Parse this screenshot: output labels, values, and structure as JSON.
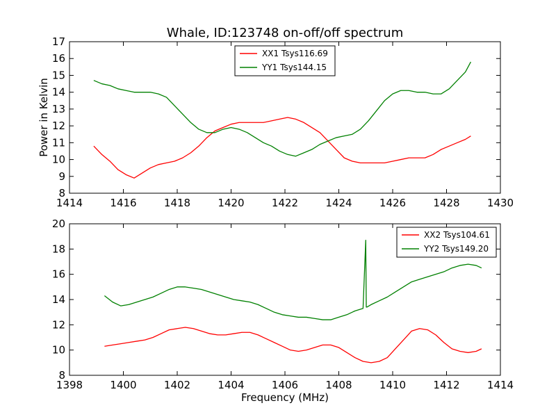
{
  "figure": {
    "title": "Whale, ID:123748 on-off/off spectrum"
  },
  "chart_data": [
    {
      "type": "line",
      "title": "Whale, ID:123748 on-off/off spectrum",
      "xlabel": "",
      "ylabel": "Power in Kelvin",
      "xlim": [
        1414,
        1430
      ],
      "ylim": [
        8,
        17
      ],
      "xticks": [
        1414,
        1416,
        1418,
        1420,
        1422,
        1424,
        1426,
        1428,
        1430
      ],
      "yticks": [
        8,
        9,
        10,
        11,
        12,
        13,
        14,
        15,
        16,
        17
      ],
      "legend_position": "top-center",
      "grid": false,
      "series": [
        {
          "name": "XX1 Tsys116.69",
          "color": "#ff0000",
          "x": [
            1414.9,
            1415.2,
            1415.5,
            1415.8,
            1416.1,
            1416.4,
            1416.7,
            1417.0,
            1417.3,
            1417.6,
            1417.9,
            1418.2,
            1418.5,
            1418.8,
            1419.1,
            1419.4,
            1419.7,
            1420.0,
            1420.3,
            1420.6,
            1420.9,
            1421.2,
            1421.5,
            1421.8,
            1422.1,
            1422.4,
            1422.7,
            1423.0,
            1423.3,
            1423.6,
            1423.9,
            1424.2,
            1424.5,
            1424.8,
            1425.1,
            1425.4,
            1425.7,
            1426.0,
            1426.3,
            1426.6,
            1426.9,
            1427.2,
            1427.5,
            1427.8,
            1428.1,
            1428.4,
            1428.7,
            1428.9
          ],
          "y": [
            10.8,
            10.3,
            9.9,
            9.4,
            9.1,
            8.9,
            9.2,
            9.5,
            9.7,
            9.8,
            9.9,
            10.1,
            10.4,
            10.8,
            11.3,
            11.7,
            11.9,
            12.1,
            12.2,
            12.2,
            12.2,
            12.2,
            12.3,
            12.4,
            12.5,
            12.4,
            12.2,
            11.9,
            11.6,
            11.1,
            10.6,
            10.1,
            9.9,
            9.8,
            9.8,
            9.8,
            9.8,
            9.9,
            10.0,
            10.1,
            10.1,
            10.1,
            10.3,
            10.6,
            10.8,
            11.0,
            11.2,
            11.4
          ]
        },
        {
          "name": "YY1 Tsys144.15",
          "color": "#008000",
          "x": [
            1414.9,
            1415.2,
            1415.5,
            1415.8,
            1416.1,
            1416.4,
            1416.7,
            1417.0,
            1417.3,
            1417.6,
            1417.9,
            1418.2,
            1418.5,
            1418.8,
            1419.1,
            1419.4,
            1419.7,
            1420.0,
            1420.3,
            1420.6,
            1420.9,
            1421.2,
            1421.5,
            1421.8,
            1422.1,
            1422.4,
            1422.7,
            1423.0,
            1423.3,
            1423.6,
            1423.9,
            1424.2,
            1424.5,
            1424.8,
            1425.1,
            1425.4,
            1425.7,
            1426.0,
            1426.3,
            1426.6,
            1426.9,
            1427.2,
            1427.5,
            1427.8,
            1428.1,
            1428.4,
            1428.7,
            1428.9
          ],
          "y": [
            14.7,
            14.5,
            14.4,
            14.2,
            14.1,
            14.0,
            14.0,
            14.0,
            13.9,
            13.7,
            13.2,
            12.7,
            12.2,
            11.8,
            11.6,
            11.6,
            11.8,
            11.9,
            11.8,
            11.6,
            11.3,
            11.0,
            10.8,
            10.5,
            10.3,
            10.2,
            10.4,
            10.6,
            10.9,
            11.1,
            11.3,
            11.4,
            11.5,
            11.8,
            12.3,
            12.9,
            13.5,
            13.9,
            14.1,
            14.1,
            14.0,
            14.0,
            13.9,
            13.9,
            14.2,
            14.7,
            15.2,
            15.8
          ]
        }
      ]
    },
    {
      "type": "line",
      "title": "",
      "xlabel": "Frequency (MHz)",
      "ylabel": "",
      "xlim": [
        1398,
        1414
      ],
      "ylim": [
        8,
        20
      ],
      "xticks": [
        1398,
        1400,
        1402,
        1404,
        1406,
        1408,
        1410,
        1412,
        1414
      ],
      "yticks": [
        8,
        10,
        12,
        14,
        16,
        18,
        20
      ],
      "legend_position": "top-right",
      "grid": false,
      "series": [
        {
          "name": "XX2 Tsys104.61",
          "color": "#ff0000",
          "x": [
            1399.3,
            1399.6,
            1399.9,
            1400.2,
            1400.5,
            1400.8,
            1401.1,
            1401.4,
            1401.7,
            1402.0,
            1402.3,
            1402.6,
            1402.9,
            1403.2,
            1403.5,
            1403.8,
            1404.1,
            1404.4,
            1404.7,
            1405.0,
            1405.3,
            1405.6,
            1405.9,
            1406.2,
            1406.5,
            1406.8,
            1407.1,
            1407.4,
            1407.7,
            1408.0,
            1408.3,
            1408.6,
            1408.9,
            1409.2,
            1409.5,
            1409.8,
            1410.1,
            1410.4,
            1410.7,
            1411.0,
            1411.3,
            1411.6,
            1411.9,
            1412.2,
            1412.5,
            1412.8,
            1413.1,
            1413.3
          ],
          "y": [
            10.3,
            10.4,
            10.5,
            10.6,
            10.7,
            10.8,
            11.0,
            11.3,
            11.6,
            11.7,
            11.8,
            11.7,
            11.5,
            11.3,
            11.2,
            11.2,
            11.3,
            11.4,
            11.4,
            11.2,
            10.9,
            10.6,
            10.3,
            10.0,
            9.9,
            10.0,
            10.2,
            10.4,
            10.4,
            10.2,
            9.8,
            9.4,
            9.1,
            9.0,
            9.1,
            9.4,
            10.1,
            10.8,
            11.5,
            11.7,
            11.6,
            11.2,
            10.6,
            10.1,
            9.9,
            9.8,
            9.9,
            10.1
          ]
        },
        {
          "name": "YY2 Tsys149.20",
          "color": "#008000",
          "x": [
            1399.3,
            1399.6,
            1399.9,
            1400.2,
            1400.5,
            1400.8,
            1401.1,
            1401.4,
            1401.7,
            1402.0,
            1402.3,
            1402.6,
            1402.9,
            1403.2,
            1403.5,
            1403.8,
            1404.1,
            1404.4,
            1404.7,
            1405.0,
            1405.3,
            1405.6,
            1405.9,
            1406.2,
            1406.5,
            1406.8,
            1407.1,
            1407.4,
            1407.7,
            1408.0,
            1408.3,
            1408.6,
            1408.9,
            1409.0,
            1409.02,
            1409.04,
            1409.2,
            1409.5,
            1409.8,
            1410.1,
            1410.4,
            1410.7,
            1411.0,
            1411.3,
            1411.6,
            1411.9,
            1412.2,
            1412.5,
            1412.8,
            1413.1,
            1413.3
          ],
          "y": [
            14.3,
            13.8,
            13.5,
            13.6,
            13.8,
            14.0,
            14.2,
            14.5,
            14.8,
            15.0,
            15.0,
            14.9,
            14.8,
            14.6,
            14.4,
            14.2,
            14.0,
            13.9,
            13.8,
            13.6,
            13.3,
            13.0,
            12.8,
            12.7,
            12.6,
            12.6,
            12.5,
            12.4,
            12.4,
            12.6,
            12.8,
            13.1,
            13.3,
            18.7,
            13.4,
            13.4,
            13.6,
            13.9,
            14.2,
            14.6,
            15.0,
            15.4,
            15.6,
            15.8,
            16.0,
            16.2,
            16.5,
            16.7,
            16.8,
            16.7,
            16.5
          ]
        }
      ]
    }
  ]
}
